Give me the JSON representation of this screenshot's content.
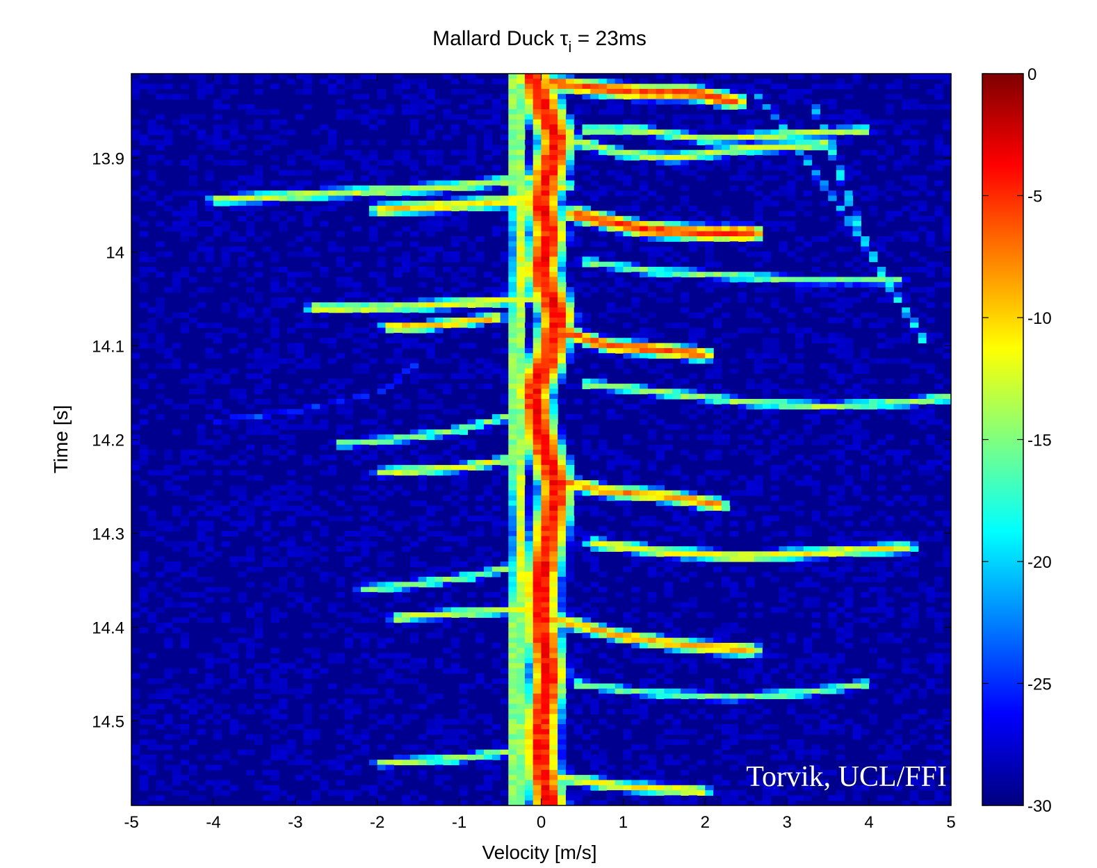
{
  "chart_data": {
    "type": "heatmap",
    "title_main": "Mallard Duck  τ",
    "title_sub": "i",
    "title_rest": " = 23ms",
    "xlabel": "Velocity [m/s]",
    "ylabel": "Time [s]",
    "xlim": [
      -5,
      5
    ],
    "ylim": [
      13.81,
      14.59
    ],
    "x_ticks": [
      -5,
      -4,
      -3,
      -2,
      -1,
      0,
      1,
      2,
      3,
      4,
      5
    ],
    "y_ticks": [
      13.9,
      14,
      14.1,
      14.2,
      14.3,
      14.4,
      14.5
    ],
    "y_tick_labels": [
      "13.9",
      "14",
      "14.1",
      "14.2",
      "14.3",
      "14.4",
      "14.5"
    ],
    "colorbar": {
      "range": [
        -30,
        0
      ],
      "ticks": [
        0,
        -5,
        -10,
        -15,
        -20,
        -25,
        -30
      ],
      "tick_labels": [
        "0",
        "-5",
        "-10",
        "-15",
        "-20",
        "-25",
        "-30"
      ],
      "colormap": "jet"
    },
    "annotation": "Torvik, UCL/FFI",
    "background_level": -29,
    "ridges": [
      {
        "points": [
          [
            -0.1,
            13.81
          ],
          [
            0.0,
            13.84
          ],
          [
            0.2,
            13.88
          ],
          [
            0.1,
            13.91
          ],
          [
            0.0,
            13.95
          ],
          [
            0.1,
            13.98
          ],
          [
            0.0,
            14.02
          ],
          [
            0.2,
            14.07
          ],
          [
            0.1,
            14.11
          ],
          [
            -0.1,
            14.15
          ],
          [
            0.0,
            14.2
          ],
          [
            0.2,
            14.25
          ],
          [
            0.1,
            14.3
          ],
          [
            0.0,
            14.35
          ],
          [
            0.0,
            14.4
          ],
          [
            0.1,
            14.45
          ],
          [
            0.0,
            14.5
          ],
          [
            0.0,
            14.55
          ],
          [
            0.1,
            14.59
          ]
        ],
        "peak": -4,
        "width": 0.22
      },
      {
        "points": [
          [
            -0.3,
            13.81
          ],
          [
            -0.3,
            13.9
          ],
          [
            -0.25,
            14.0
          ],
          [
            -0.3,
            14.1
          ],
          [
            -0.3,
            14.2
          ],
          [
            -0.25,
            14.3
          ],
          [
            -0.3,
            14.4
          ],
          [
            -0.3,
            14.5
          ],
          [
            -0.3,
            14.59
          ]
        ],
        "peak": -12,
        "width": 0.12
      },
      {
        "points": [
          [
            0.1,
            13.82
          ],
          [
            0.6,
            13.825
          ],
          [
            1.2,
            13.83
          ],
          [
            1.8,
            13.83
          ],
          [
            2.4,
            13.84
          ]
        ],
        "peak": -6,
        "width": 0.09
      },
      {
        "points": [
          [
            0.5,
            13.87
          ],
          [
            1.2,
            13.87
          ],
          [
            2.0,
            13.88
          ],
          [
            3.0,
            13.875
          ],
          [
            4.0,
            13.87
          ]
        ],
        "peak": -13,
        "width": 0.06
      },
      {
        "points": [
          [
            0.3,
            13.88
          ],
          [
            1.0,
            13.895
          ],
          [
            1.6,
            13.9
          ],
          [
            2.5,
            13.89
          ],
          [
            3.5,
            13.885
          ]
        ],
        "peak": -13,
        "width": 0.07
      },
      {
        "points": [
          [
            0.0,
            13.92
          ],
          [
            -1.0,
            13.93
          ],
          [
            -2.0,
            13.935
          ],
          [
            -3.0,
            13.94
          ],
          [
            -4.0,
            13.945
          ]
        ],
        "peak": -13,
        "width": 0.07
      },
      {
        "points": [
          [
            0.3,
            13.93
          ],
          [
            -0.3,
            13.945
          ],
          [
            -1.0,
            13.95
          ],
          [
            -2.0,
            13.955
          ]
        ],
        "peak": -10,
        "width": 0.08
      },
      {
        "points": [
          [
            0.4,
            13.96
          ],
          [
            1.2,
            13.975
          ],
          [
            2.0,
            13.98
          ],
          [
            2.6,
            13.98
          ]
        ],
        "peak": -5,
        "width": 0.09
      },
      {
        "points": [
          [
            0.5,
            14.01
          ],
          [
            1.3,
            14.02
          ],
          [
            2.2,
            14.025
          ],
          [
            3.2,
            14.03
          ],
          [
            4.4,
            14.03
          ]
        ],
        "peak": -15,
        "width": 0.06
      },
      {
        "points": [
          [
            -0.1,
            14.05
          ],
          [
            -1.0,
            14.055
          ],
          [
            -2.0,
            14.06
          ],
          [
            -2.8,
            14.06
          ]
        ],
        "peak": -12,
        "width": 0.07
      },
      {
        "points": [
          [
            -0.5,
            14.07
          ],
          [
            -1.5,
            14.08
          ],
          [
            -1.9,
            14.08
          ]
        ],
        "peak": -9,
        "width": 0.06
      },
      {
        "points": [
          [
            0.1,
            14.08
          ],
          [
            0.8,
            14.1
          ],
          [
            1.5,
            14.105
          ],
          [
            2.0,
            14.11
          ]
        ],
        "peak": -6,
        "width": 0.08
      },
      {
        "points": [
          [
            0.5,
            14.14
          ],
          [
            1.5,
            14.15
          ],
          [
            2.5,
            14.16
          ],
          [
            3.5,
            14.165
          ],
          [
            4.5,
            14.16
          ],
          [
            5.0,
            14.155
          ]
        ],
        "peak": -14,
        "width": 0.06
      },
      {
        "points": [
          [
            -0.2,
            14.17
          ],
          [
            -1.0,
            14.19
          ],
          [
            -1.8,
            14.2
          ],
          [
            -2.5,
            14.205
          ]
        ],
        "peak": -15,
        "width": 0.06
      },
      {
        "points": [
          [
            -0.3,
            14.22
          ],
          [
            -1.0,
            14.23
          ],
          [
            -2.0,
            14.235
          ]
        ],
        "peak": -12,
        "width": 0.06
      },
      {
        "points": [
          [
            0.0,
            14.24
          ],
          [
            0.8,
            14.255
          ],
          [
            1.5,
            14.26
          ],
          [
            2.2,
            14.27
          ]
        ],
        "peak": -8,
        "width": 0.08
      },
      {
        "points": [
          [
            0.6,
            14.31
          ],
          [
            1.5,
            14.32
          ],
          [
            2.5,
            14.325
          ],
          [
            3.5,
            14.32
          ],
          [
            4.5,
            14.315
          ]
        ],
        "peak": -11,
        "width": 0.07
      },
      {
        "points": [
          [
            -0.1,
            14.33
          ],
          [
            -0.8,
            14.345
          ],
          [
            -1.6,
            14.355
          ],
          [
            -2.2,
            14.36
          ]
        ],
        "peak": -15,
        "width": 0.06
      },
      {
        "points": [
          [
            -0.1,
            14.38
          ],
          [
            -1.0,
            14.385
          ],
          [
            -1.8,
            14.39
          ]
        ],
        "peak": -12,
        "width": 0.06
      },
      {
        "points": [
          [
            0.1,
            14.39
          ],
          [
            1.0,
            14.41
          ],
          [
            1.8,
            14.42
          ],
          [
            2.6,
            14.425
          ]
        ],
        "peak": -9,
        "width": 0.08
      },
      {
        "points": [
          [
            0.4,
            14.46
          ],
          [
            1.3,
            14.47
          ],
          [
            2.3,
            14.475
          ],
          [
            3.2,
            14.47
          ],
          [
            4.0,
            14.46
          ]
        ],
        "peak": -15,
        "width": 0.06
      },
      {
        "points": [
          [
            -0.2,
            14.53
          ],
          [
            -1.0,
            14.54
          ],
          [
            -2.0,
            14.545
          ]
        ],
        "peak": -14,
        "width": 0.06
      },
      {
        "points": [
          [
            0.2,
            14.56
          ],
          [
            1.0,
            14.57
          ],
          [
            2.0,
            14.575
          ]
        ],
        "peak": -11,
        "width": 0.07
      },
      {
        "points": [
          [
            3.3,
            13.84
          ],
          [
            3.5,
            13.88
          ],
          [
            3.7,
            13.93
          ],
          [
            3.9,
            13.98
          ],
          [
            4.2,
            14.03
          ],
          [
            4.5,
            14.07
          ],
          [
            4.7,
            14.1
          ]
        ],
        "peak": -19,
        "width": 0.05
      },
      {
        "points": [
          [
            2.6,
            13.83
          ],
          [
            2.9,
            13.86
          ],
          [
            3.3,
            13.91
          ],
          [
            3.7,
            13.96
          ],
          [
            4.0,
            14.0
          ]
        ],
        "peak": -21,
        "width": 0.05
      },
      {
        "points": [
          [
            -1.5,
            14.12
          ],
          [
            -2.0,
            14.15
          ],
          [
            -3.0,
            14.17
          ],
          [
            -4.0,
            14.18
          ]
        ],
        "peak": -24,
        "width": 0.05
      }
    ]
  }
}
